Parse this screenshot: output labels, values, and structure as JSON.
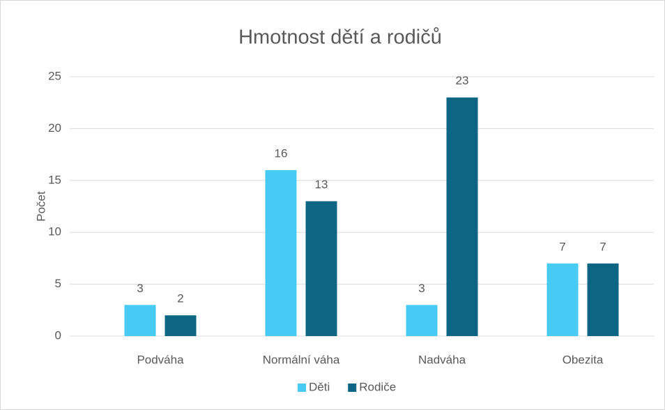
{
  "chart_data": {
    "type": "bar",
    "title": "Hmotnost dětí a rodičů",
    "ylabel": "Počet",
    "categories": [
      "Podváha",
      "Normální váha",
      "Nadváha",
      "Obezita"
    ],
    "series": [
      {
        "name": "Děti",
        "color": "#47cbf5",
        "values": [
          3,
          16,
          3,
          7
        ]
      },
      {
        "name": "Rodiče",
        "color": "#0b6583",
        "values": [
          2,
          13,
          23,
          7
        ]
      }
    ],
    "ylim": [
      0,
      25
    ],
    "yticks": [
      0,
      5,
      10,
      15,
      20,
      25
    ],
    "grid": true,
    "legend": "bottom"
  }
}
